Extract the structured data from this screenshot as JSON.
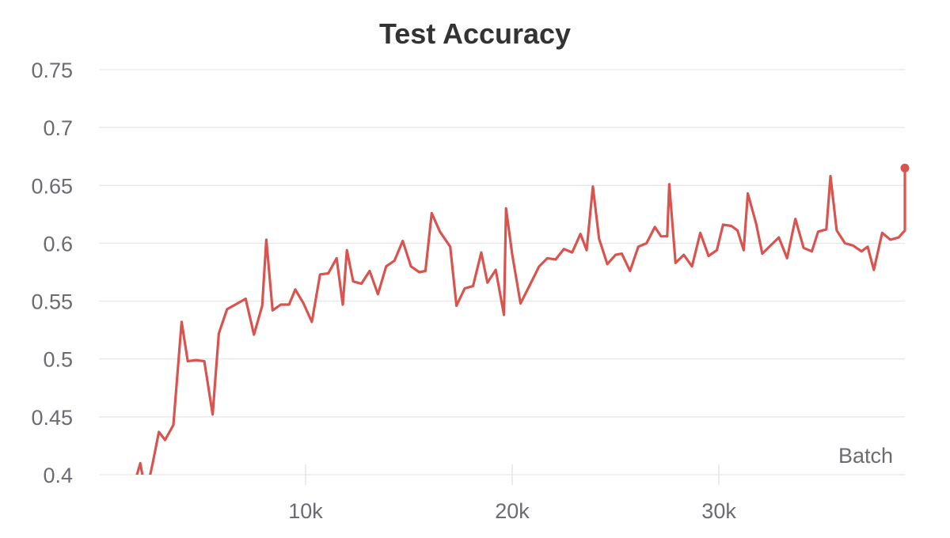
{
  "chart_data": {
    "type": "line",
    "title": "Test Accuracy",
    "xlabel": "Batch",
    "ylabel": "",
    "xlim": [
      0,
      39000
    ],
    "ylim": [
      0.4,
      0.75
    ],
    "xticks": [
      10000,
      20000,
      30000
    ],
    "xtick_labels": [
      "10k",
      "20k",
      "30k"
    ],
    "yticks": [
      0.4,
      0.45,
      0.5,
      0.55,
      0.6,
      0.65,
      0.7,
      0.75
    ],
    "ytick_labels": [
      "0.4",
      "0.45",
      "0.5",
      "0.55",
      "0.6",
      "0.65",
      "0.7",
      "0.75"
    ],
    "grid": true,
    "colors": {
      "line": "#d9534f",
      "grid": "#e6e6e6",
      "tick": "#6b6b73"
    },
    "series": [
      {
        "x": [
          1600,
          2000,
          2200,
          2300,
          2600,
          2900,
          3200,
          3600,
          4000,
          4300,
          4700,
          5100,
          5500,
          5800,
          6200,
          6600,
          7100,
          7500,
          7900,
          8100,
          8400,
          8800,
          9200,
          9500,
          9900,
          10300,
          10700,
          11100,
          11500,
          11800,
          12000,
          12300,
          12700,
          13100,
          13500,
          13900,
          14300,
          14700,
          15100,
          15500,
          15800,
          16100,
          16500,
          17000,
          17300,
          17700,
          18100,
          18500,
          18800,
          19200,
          19600,
          19700,
          20000,
          20400,
          20800,
          21300,
          21700,
          22100,
          22500,
          22900,
          23300,
          23600,
          23900,
          24200,
          24600,
          25000,
          25300,
          25700,
          26100,
          26500,
          26900,
          27200,
          27500,
          27600,
          27900,
          28300,
          28700,
          29100,
          29500,
          29900,
          30200,
          30600,
          30900,
          31200,
          31400,
          31800,
          32100,
          32500,
          32900,
          33300,
          33700,
          34100,
          34500,
          34800,
          35200,
          35400,
          35700,
          36100,
          36500,
          36900,
          37200,
          37500,
          37900,
          38300,
          38700,
          39000,
          39000
        ],
        "y": [
          0.385,
          0.41,
          0.39,
          0.385,
          0.41,
          0.437,
          0.43,
          0.443,
          0.532,
          0.498,
          0.499,
          0.498,
          0.452,
          0.522,
          0.543,
          0.547,
          0.552,
          0.521,
          0.546,
          0.603,
          0.542,
          0.547,
          0.547,
          0.56,
          0.548,
          0.532,
          0.573,
          0.574,
          0.587,
          0.547,
          0.594,
          0.567,
          0.565,
          0.576,
          0.556,
          0.58,
          0.585,
          0.602,
          0.58,
          0.575,
          0.576,
          0.626,
          0.61,
          0.597,
          0.546,
          0.561,
          0.563,
          0.592,
          0.566,
          0.577,
          0.538,
          0.63,
          0.59,
          0.548,
          0.562,
          0.58,
          0.587,
          0.586,
          0.595,
          0.592,
          0.608,
          0.594,
          0.649,
          0.604,
          0.582,
          0.59,
          0.591,
          0.576,
          0.597,
          0.6,
          0.614,
          0.606,
          0.606,
          0.651,
          0.583,
          0.59,
          0.58,
          0.609,
          0.589,
          0.594,
          0.616,
          0.615,
          0.611,
          0.594,
          0.643,
          0.617,
          0.591,
          0.598,
          0.605,
          0.587,
          0.621,
          0.596,
          0.593,
          0.61,
          0.612,
          0.658,
          0.611,
          0.6,
          0.598,
          0.593,
          0.597,
          0.577,
          0.609,
          0.603,
          0.605,
          0.611,
          0.665
        ]
      }
    ]
  }
}
